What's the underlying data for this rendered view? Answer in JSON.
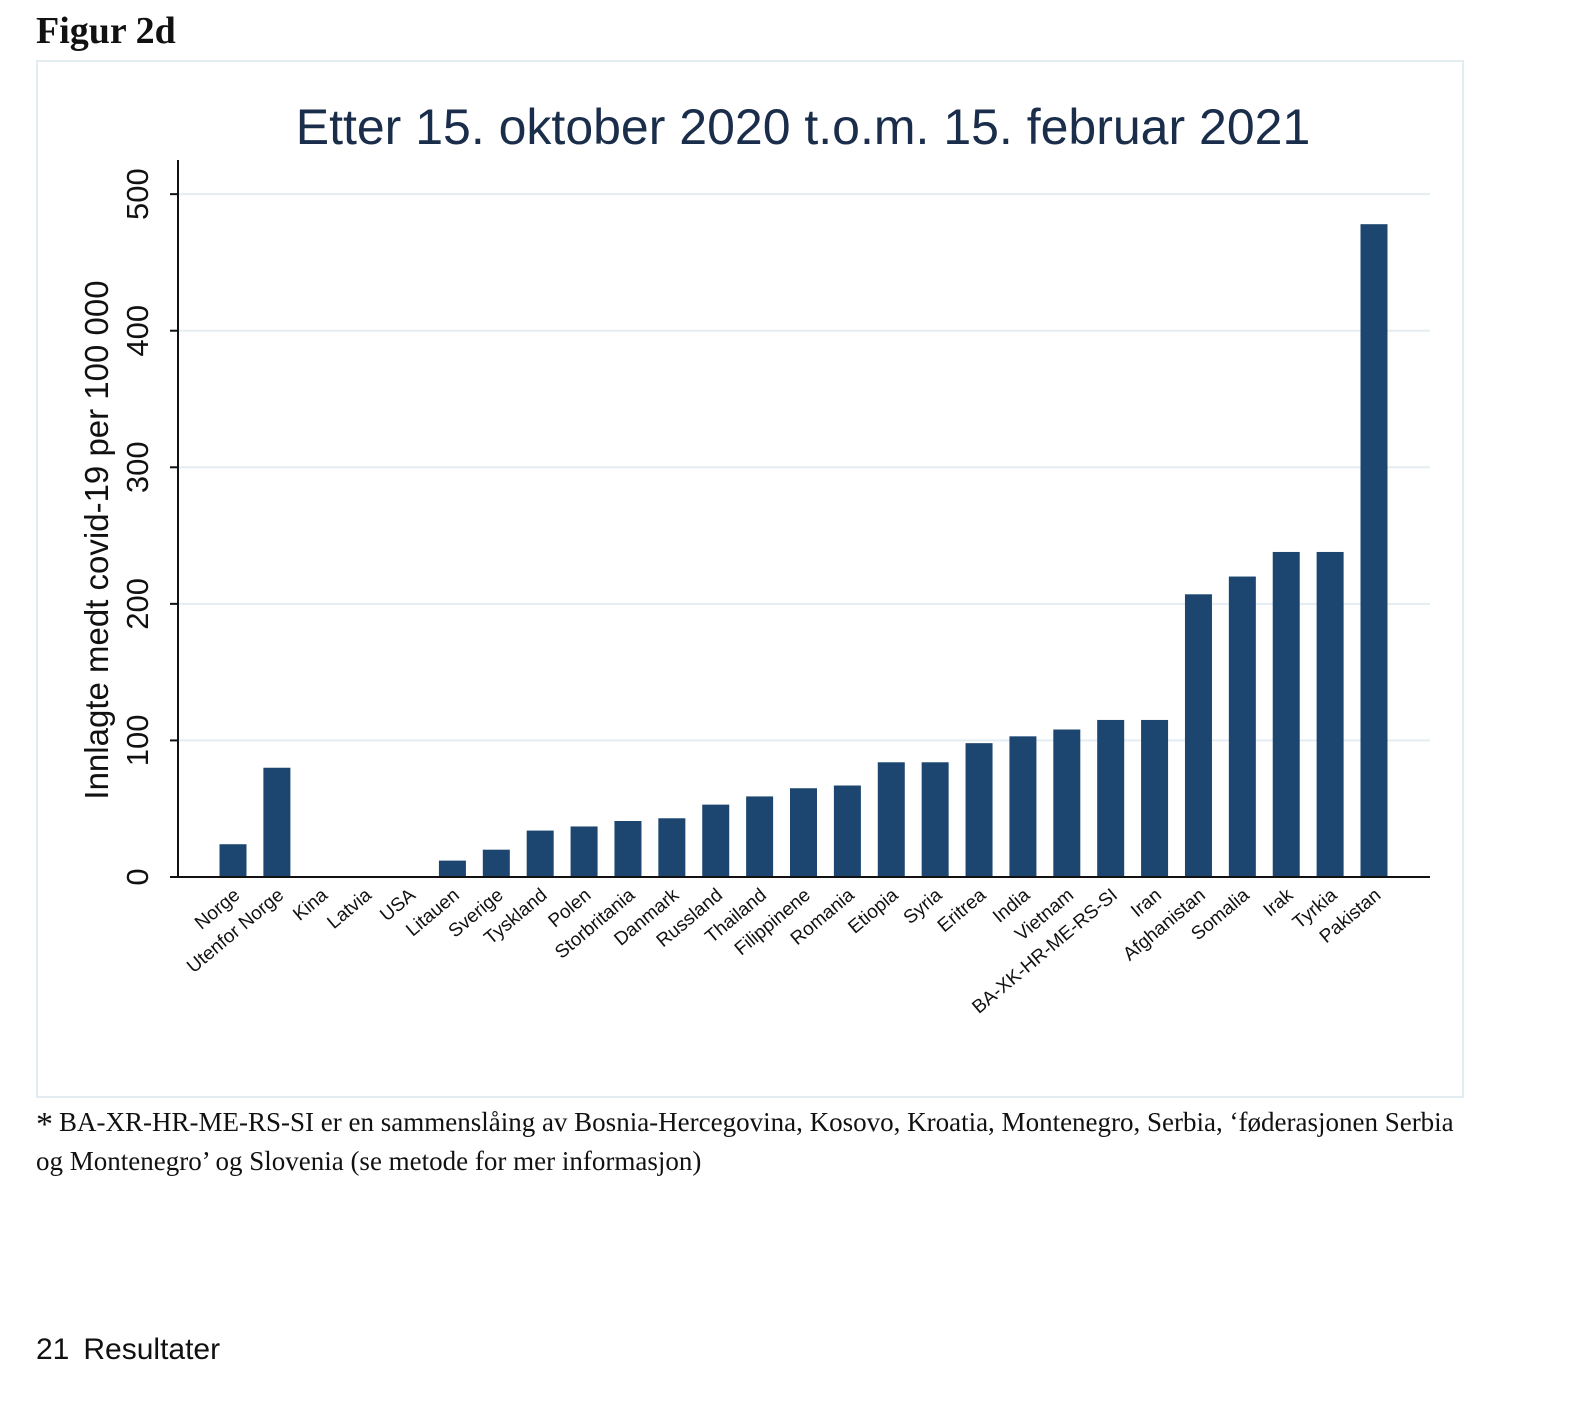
{
  "figure_label": "Figur 2d",
  "chart_data": {
    "type": "bar",
    "title": "Etter 15. oktober 2020 t.o.m. 15. februar 2021",
    "xlabel": "",
    "ylabel": "Innlagte medt covid-19 per 100 000",
    "ylim": [
      0,
      525
    ],
    "yticks": [
      0,
      100,
      200,
      300,
      400,
      500
    ],
    "grid": true,
    "bar_color": "#1c4670",
    "categories": [
      "Norge",
      "Utenfor Norge",
      "Kina",
      "Latvia",
      "USA",
      "Litauen",
      "Sverige",
      "Tyskland",
      "Polen",
      "Storbritania",
      "Danmark",
      "Russland",
      "Thailand",
      "Filippinene",
      "Romania",
      "Etiopia",
      "Syria",
      "Eritrea",
      "India",
      "Vietnam",
      "BA-XK-HR-ME-RS-SI",
      "Iran",
      "Afghanistan",
      "Somalia",
      "Irak",
      "Tyrkia",
      "Pakistan"
    ],
    "values": [
      24,
      80,
      0,
      0,
      0,
      12,
      20,
      34,
      37,
      41,
      43,
      53,
      59,
      65,
      67,
      84,
      84,
      98,
      103,
      108,
      115,
      115,
      207,
      220,
      238,
      238,
      478
    ]
  },
  "footnote": {
    "marker": "*",
    "text": "BA-XR-HR-ME-RS-SI er en sammenslåing av Bosnia-Hercegovina, Kosovo, Kroatia, Montenegro, Serbia, ‘føderasjonen Serbia og Montenegro’ og Slovenia (se metode for mer informasjon)"
  },
  "page_footer": {
    "page_number": "21",
    "section": "Resultater"
  }
}
